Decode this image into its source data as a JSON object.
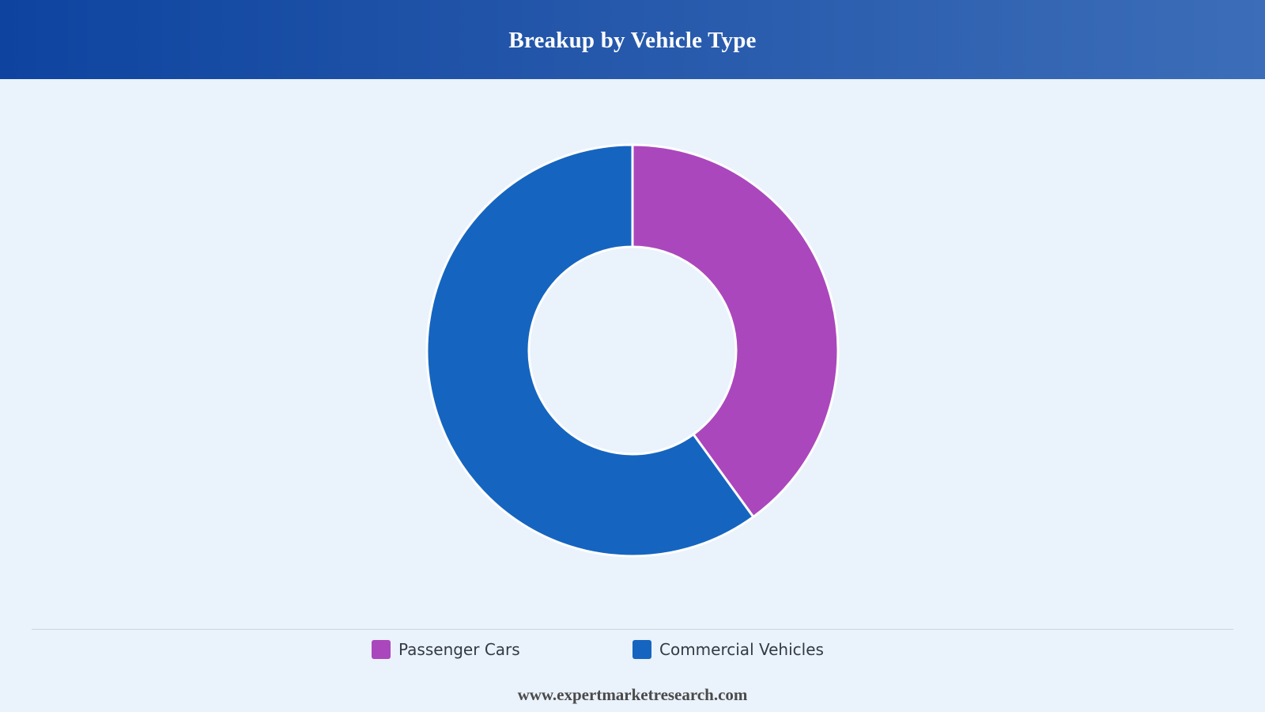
{
  "header": {
    "title": "Breakup by Vehicle Type"
  },
  "chart_data": {
    "type": "pie",
    "variant": "donut",
    "title": "Breakup by Vehicle Type",
    "categories": [
      "Passenger Cars",
      "Commercial Vehicles"
    ],
    "values": [
      40,
      60
    ],
    "colors": [
      "#ab47bc",
      "#1565c0"
    ],
    "legend_position": "bottom",
    "start": "top",
    "direction": "clockwise"
  },
  "legend": {
    "items": [
      {
        "label": "Passenger Cars",
        "color": "#ab47bc"
      },
      {
        "label": "Commercial Vehicles",
        "color": "#1565c0"
      }
    ]
  },
  "footer": {
    "text": "www.expertmarketresearch.com"
  }
}
